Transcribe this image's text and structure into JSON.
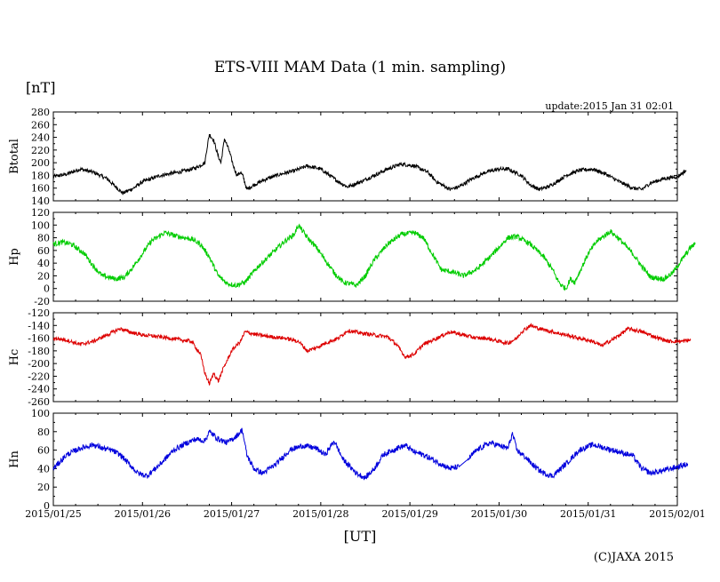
{
  "figure": {
    "title": "ETS-VIII MAM Data (1 min. sampling)",
    "unit_label": "[nT]",
    "update_text": "update:2015 Jan 31 02:01",
    "x_unit": "[UT]",
    "copyright": "(C)JAXA 2015"
  },
  "chart_data": [
    {
      "type": "line",
      "name": "Btotal",
      "ylabel": "Btotal",
      "color": "#000000",
      "ylim": [
        140,
        280
      ],
      "yticks": [
        140,
        160,
        180,
        200,
        220,
        240,
        260,
        280
      ],
      "xlim": [
        0,
        7
      ],
      "x_ticks": [
        "2015/01/25",
        "2015/01/26",
        "2015/01/27",
        "2015/01/28",
        "2015/01/29",
        "2015/01/30",
        "2015/01/31",
        "2015/02/01"
      ],
      "x_unit_note": "days since 2015/01/25 00:00 UT",
      "noise": 3,
      "points": [
        [
          0,
          178
        ],
        [
          0.15,
          182
        ],
        [
          0.3,
          190
        ],
        [
          0.45,
          185
        ],
        [
          0.6,
          175
        ],
        [
          0.7,
          162
        ],
        [
          0.78,
          152
        ],
        [
          0.9,
          160
        ],
        [
          1.0,
          170
        ],
        [
          1.2,
          180
        ],
        [
          1.4,
          185
        ],
        [
          1.5,
          188
        ],
        [
          1.6,
          192
        ],
        [
          1.7,
          200
        ],
        [
          1.72,
          220
        ],
        [
          1.75,
          245
        ],
        [
          1.8,
          235
        ],
        [
          1.85,
          210
        ],
        [
          1.88,
          200
        ],
        [
          1.92,
          238
        ],
        [
          1.97,
          220
        ],
        [
          2.02,
          195
        ],
        [
          2.06,
          180
        ],
        [
          2.1,
          185
        ],
        [
          2.13,
          178
        ],
        [
          2.17,
          158
        ],
        [
          2.25,
          165
        ],
        [
          2.4,
          175
        ],
        [
          2.55,
          182
        ],
        [
          2.7,
          187
        ],
        [
          2.85,
          195
        ],
        [
          3.0,
          190
        ],
        [
          3.1,
          180
        ],
        [
          3.2,
          170
        ],
        [
          3.3,
          162
        ],
        [
          3.45,
          170
        ],
        [
          3.6,
          180
        ],
        [
          3.75,
          190
        ],
        [
          3.9,
          198
        ],
        [
          4.05,
          195
        ],
        [
          4.2,
          185
        ],
        [
          4.3,
          170
        ],
        [
          4.45,
          158
        ],
        [
          4.55,
          162
        ],
        [
          4.7,
          175
        ],
        [
          4.85,
          185
        ],
        [
          5.0,
          190
        ],
        [
          5.1,
          190
        ],
        [
          5.25,
          180
        ],
        [
          5.35,
          165
        ],
        [
          5.45,
          158
        ],
        [
          5.55,
          162
        ],
        [
          5.65,
          170
        ],
        [
          5.75,
          180
        ],
        [
          5.9,
          188
        ],
        [
          6.05,
          190
        ],
        [
          6.2,
          182
        ],
        [
          6.35,
          170
        ],
        [
          6.5,
          160
        ],
        [
          6.6,
          158
        ],
        [
          6.7,
          168
        ],
        [
          6.85,
          175
        ],
        [
          7.0,
          178
        ],
        [
          7.1,
          188
        ]
      ]
    },
    {
      "type": "line",
      "name": "Hp",
      "ylabel": "Hp",
      "color": "#00cc00",
      "ylim": [
        -20,
        120
      ],
      "yticks": [
        -20,
        0,
        20,
        40,
        60,
        80,
        100,
        120
      ],
      "xlim": [
        0,
        7
      ],
      "x_ticks": [
        "2015/01/25",
        "2015/01/26",
        "2015/01/27",
        "2015/01/28",
        "2015/01/29",
        "2015/01/30",
        "2015/01/31",
        "2015/02/01"
      ],
      "x_unit_note": "days since 2015/01/25 00:00 UT",
      "noise": 4,
      "points": [
        [
          0,
          70
        ],
        [
          0.1,
          73
        ],
        [
          0.2,
          70
        ],
        [
          0.35,
          55
        ],
        [
          0.45,
          35
        ],
        [
          0.55,
          20
        ],
        [
          0.7,
          15
        ],
        [
          0.8,
          18
        ],
        [
          0.9,
          35
        ],
        [
          1.0,
          55
        ],
        [
          1.1,
          75
        ],
        [
          1.25,
          88
        ],
        [
          1.4,
          82
        ],
        [
          1.55,
          78
        ],
        [
          1.65,
          70
        ],
        [
          1.75,
          50
        ],
        [
          1.85,
          20
        ],
        [
          1.95,
          8
        ],
        [
          2.05,
          5
        ],
        [
          2.15,
          10
        ],
        [
          2.3,
          35
        ],
        [
          2.45,
          55
        ],
        [
          2.6,
          75
        ],
        [
          2.7,
          85
        ],
        [
          2.75,
          100
        ],
        [
          2.85,
          80
        ],
        [
          2.95,
          65
        ],
        [
          3.05,
          45
        ],
        [
          3.15,
          25
        ],
        [
          3.25,
          10
        ],
        [
          3.4,
          5
        ],
        [
          3.5,
          20
        ],
        [
          3.6,
          45
        ],
        [
          3.75,
          70
        ],
        [
          3.9,
          85
        ],
        [
          4.05,
          88
        ],
        [
          4.15,
          80
        ],
        [
          4.25,
          55
        ],
        [
          4.35,
          30
        ],
        [
          4.5,
          25
        ],
        [
          4.6,
          20
        ],
        [
          4.75,
          30
        ],
        [
          4.9,
          50
        ],
        [
          5.0,
          65
        ],
        [
          5.1,
          80
        ],
        [
          5.2,
          82
        ],
        [
          5.35,
          70
        ],
        [
          5.5,
          50
        ],
        [
          5.6,
          30
        ],
        [
          5.65,
          15
        ],
        [
          5.7,
          5
        ],
        [
          5.75,
          0
        ],
        [
          5.8,
          15
        ],
        [
          5.85,
          10
        ],
        [
          5.9,
          25
        ],
        [
          6.0,
          55
        ],
        [
          6.1,
          75
        ],
        [
          6.25,
          90
        ],
        [
          6.35,
          78
        ],
        [
          6.5,
          55
        ],
        [
          6.6,
          35
        ],
        [
          6.7,
          18
        ],
        [
          6.85,
          15
        ],
        [
          6.95,
          25
        ],
        [
          7.05,
          45
        ],
        [
          7.15,
          65
        ],
        [
          7.2,
          70
        ]
      ]
    },
    {
      "type": "line",
      "name": "Hc",
      "ylabel": "Hc",
      "color": "#dd0000",
      "ylim": [
        -260,
        -120
      ],
      "yticks": [
        -260,
        -240,
        -220,
        -200,
        -180,
        -160,
        -140,
        -120
      ],
      "xlim": [
        0,
        7
      ],
      "x_ticks": [
        "2015/01/25",
        "2015/01/26",
        "2015/01/27",
        "2015/01/28",
        "2015/01/29",
        "2015/01/30",
        "2015/01/31",
        "2015/02/01"
      ],
      "x_unit_note": "days since 2015/01/25 00:00 UT",
      "noise": 3,
      "points": [
        [
          0,
          -160
        ],
        [
          0.15,
          -163
        ],
        [
          0.3,
          -170
        ],
        [
          0.45,
          -165
        ],
        [
          0.6,
          -155
        ],
        [
          0.75,
          -145
        ],
        [
          0.85,
          -150
        ],
        [
          1.0,
          -155
        ],
        [
          1.2,
          -158
        ],
        [
          1.4,
          -162
        ],
        [
          1.55,
          -165
        ],
        [
          1.65,
          -185
        ],
        [
          1.7,
          -215
        ],
        [
          1.75,
          -232
        ],
        [
          1.8,
          -215
        ],
        [
          1.85,
          -228
        ],
        [
          1.9,
          -210
        ],
        [
          1.95,
          -195
        ],
        [
          2.0,
          -180
        ],
        [
          2.05,
          -172
        ],
        [
          2.1,
          -165
        ],
        [
          2.15,
          -150
        ],
        [
          2.3,
          -155
        ],
        [
          2.45,
          -158
        ],
        [
          2.6,
          -160
        ],
        [
          2.75,
          -165
        ],
        [
          2.85,
          -180
        ],
        [
          2.95,
          -175
        ],
        [
          3.05,
          -168
        ],
        [
          3.2,
          -160
        ],
        [
          3.3,
          -148
        ],
        [
          3.45,
          -152
        ],
        [
          3.6,
          -155
        ],
        [
          3.75,
          -158
        ],
        [
          3.85,
          -170
        ],
        [
          3.95,
          -190
        ],
        [
          4.05,
          -185
        ],
        [
          4.15,
          -170
        ],
        [
          4.3,
          -160
        ],
        [
          4.45,
          -150
        ],
        [
          4.6,
          -155
        ],
        [
          4.75,
          -160
        ],
        [
          4.85,
          -160
        ],
        [
          5.0,
          -165
        ],
        [
          5.1,
          -168
        ],
        [
          5.2,
          -160
        ],
        [
          5.25,
          -150
        ],
        [
          5.35,
          -140
        ],
        [
          5.45,
          -145
        ],
        [
          5.6,
          -150
        ],
        [
          5.75,
          -155
        ],
        [
          5.9,
          -160
        ],
        [
          6.05,
          -165
        ],
        [
          6.15,
          -172
        ],
        [
          6.3,
          -160
        ],
        [
          6.45,
          -145
        ],
        [
          6.6,
          -150
        ],
        [
          6.75,
          -158
        ],
        [
          6.9,
          -165
        ],
        [
          7.05,
          -165
        ],
        [
          7.15,
          -163
        ]
      ]
    },
    {
      "type": "line",
      "name": "Hn",
      "ylabel": "Hn",
      "color": "#0000dd",
      "ylim": [
        0,
        100
      ],
      "yticks": [
        0,
        20,
        40,
        60,
        80,
        100
      ],
      "xlim": [
        0,
        7
      ],
      "x_ticks": [
        "2015/01/25",
        "2015/01/26",
        "2015/01/27",
        "2015/01/28",
        "2015/01/29",
        "2015/01/30",
        "2015/01/31",
        "2015/02/01"
      ],
      "x_unit_note": "days since 2015/01/25 00:00 UT",
      "noise": 3,
      "points": [
        [
          0,
          40
        ],
        [
          0.15,
          55
        ],
        [
          0.3,
          62
        ],
        [
          0.45,
          66
        ],
        [
          0.55,
          62
        ],
        [
          0.65,
          60
        ],
        [
          0.75,
          55
        ],
        [
          0.85,
          45
        ],
        [
          0.95,
          35
        ],
        [
          1.05,
          32
        ],
        [
          1.2,
          45
        ],
        [
          1.35,
          60
        ],
        [
          1.5,
          68
        ],
        [
          1.6,
          72
        ],
        [
          1.7,
          70
        ],
        [
          1.75,
          80
        ],
        [
          1.85,
          72
        ],
        [
          1.95,
          68
        ],
        [
          2.05,
          75
        ],
        [
          2.12,
          82
        ],
        [
          2.17,
          55
        ],
        [
          2.25,
          40
        ],
        [
          2.35,
          35
        ],
        [
          2.5,
          45
        ],
        [
          2.65,
          60
        ],
        [
          2.8,
          65
        ],
        [
          2.95,
          62
        ],
        [
          3.05,
          55
        ],
        [
          3.15,
          70
        ],
        [
          3.25,
          50
        ],
        [
          3.4,
          35
        ],
        [
          3.5,
          30
        ],
        [
          3.6,
          40
        ],
        [
          3.7,
          55
        ],
        [
          3.85,
          62
        ],
        [
          3.95,
          65
        ],
        [
          4.05,
          58
        ],
        [
          4.15,
          55
        ],
        [
          4.25,
          50
        ],
        [
          4.35,
          45
        ],
        [
          4.45,
          40
        ],
        [
          4.55,
          42
        ],
        [
          4.65,
          50
        ],
        [
          4.75,
          60
        ],
        [
          4.9,
          68
        ],
        [
          5.0,
          65
        ],
        [
          5.1,
          62
        ],
        [
          5.15,
          78
        ],
        [
          5.2,
          60
        ],
        [
          5.3,
          52
        ],
        [
          5.4,
          42
        ],
        [
          5.5,
          35
        ],
        [
          5.6,
          32
        ],
        [
          5.75,
          45
        ],
        [
          5.9,
          60
        ],
        [
          6.05,
          66
        ],
        [
          6.2,
          62
        ],
        [
          6.35,
          58
        ],
        [
          6.5,
          54
        ],
        [
          6.6,
          40
        ],
        [
          6.7,
          35
        ],
        [
          6.85,
          38
        ],
        [
          7.0,
          42
        ],
        [
          7.12,
          45
        ]
      ]
    }
  ]
}
